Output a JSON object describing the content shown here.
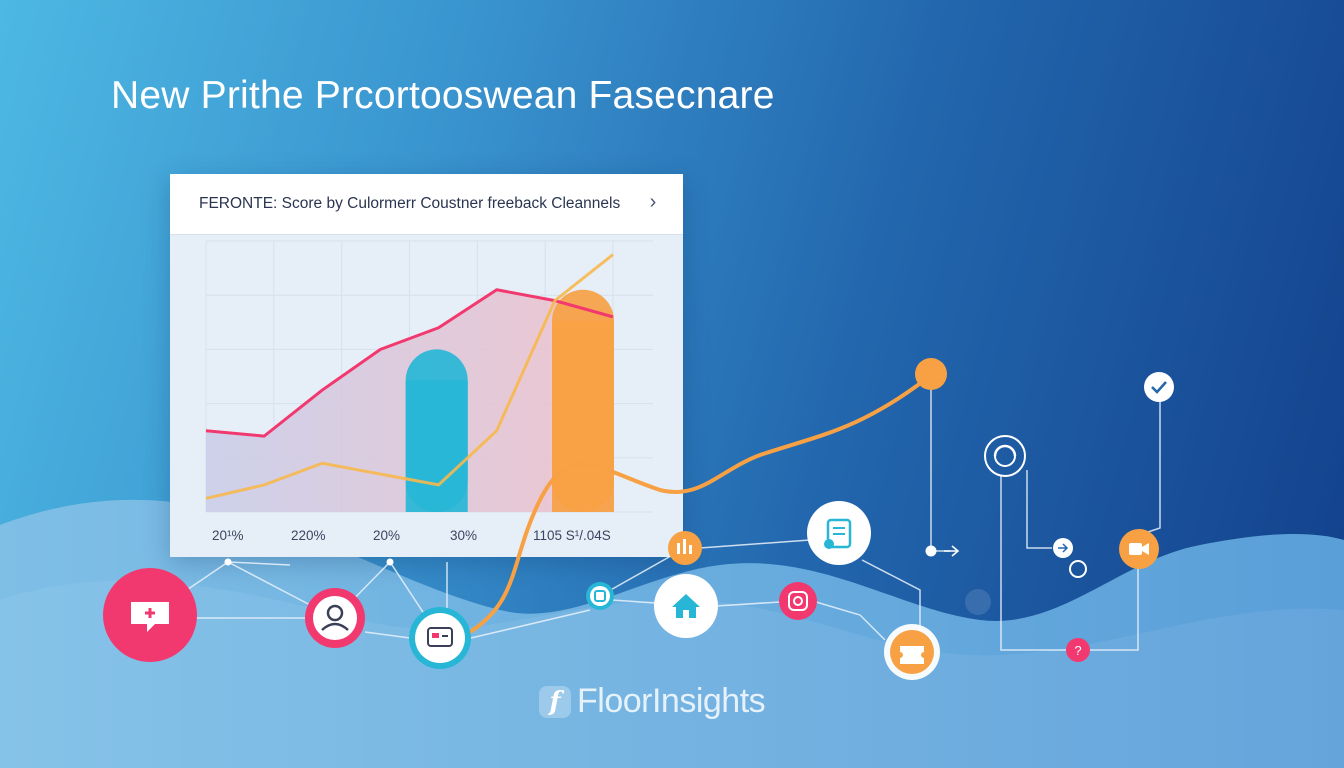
{
  "headline": "New Prithe Prcortooswean Fasecnare",
  "card": {
    "title": "FERONTE: Score by Culormerr Coustner freeback Cleannels",
    "chevron": "›"
  },
  "chart_data": {
    "type": "bar",
    "title": "FERONTE: Score by Culormerr Coustner freeback Cleannels",
    "tick_labels": [
      "20¹%",
      "220%",
      "20%",
      "30%",
      "1105 S¹/.04S"
    ],
    "series": [
      {
        "values": [
          30,
          28,
          45,
          60,
          68,
          82,
          78,
          72
        ]
      },
      {
        "values": [
          5,
          10,
          18,
          14,
          10,
          30,
          78,
          95
        ]
      }
    ],
    "bars": [
      {
        "value": 60,
        "color": "#27b6d6"
      },
      {
        "value": 82,
        "color": "#f7a144"
      }
    ],
    "ylim": [
      0,
      100
    ],
    "grid": true
  },
  "brand": {
    "logo_letter": "f",
    "name": "FloorInsights"
  },
  "colors": {
    "pink": "#f2396f",
    "orange": "#f7a144",
    "cyan": "#27b6d6",
    "white": "#ffffff",
    "background_light": "#4db8e3",
    "background_dark": "#123f8a"
  },
  "icons": [
    "chat-plus-icon",
    "team-icon",
    "form-icon",
    "scan-icon",
    "document-icon",
    "bars-icon",
    "home-icon",
    "instagram-icon",
    "ticket-icon",
    "support-icon",
    "check-icon",
    "arrow-right-icon",
    "video-icon",
    "help-icon"
  ]
}
